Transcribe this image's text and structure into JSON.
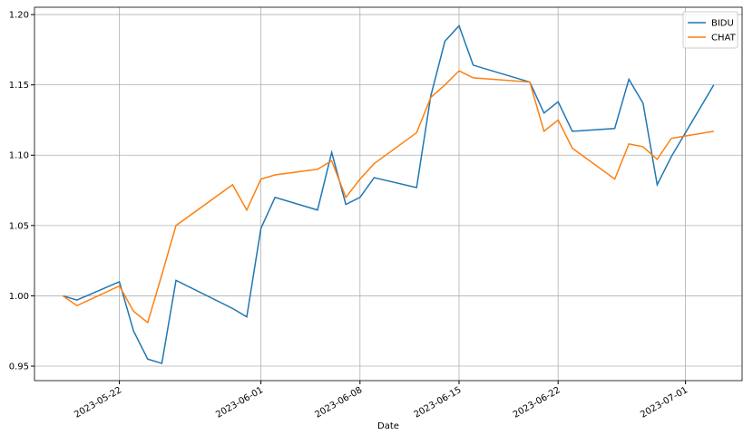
{
  "chart_data": {
    "type": "line",
    "x_label": "Date",
    "x": [
      "2023-05-18",
      "2023-05-19",
      "2023-05-22",
      "2023-05-23",
      "2023-05-24",
      "2023-05-25",
      "2023-05-26",
      "2023-05-30",
      "2023-05-31",
      "2023-06-01",
      "2023-06-02",
      "2023-06-05",
      "2023-06-06",
      "2023-06-07",
      "2023-06-08",
      "2023-06-09",
      "2023-06-12",
      "2023-06-13",
      "2023-06-14",
      "2023-06-15",
      "2023-06-16",
      "2023-06-20",
      "2023-06-21",
      "2023-06-22",
      "2023-06-23",
      "2023-06-26",
      "2023-06-27",
      "2023-06-28",
      "2023-06-29",
      "2023-06-30",
      "2023-07-03"
    ],
    "series": [
      {
        "name": "BIDU",
        "color": "#1f77b4",
        "values": [
          1.0,
          0.997,
          1.01,
          0.975,
          0.955,
          0.952,
          1.011,
          0.991,
          0.985,
          1.048,
          1.07,
          1.061,
          1.102,
          1.065,
          1.07,
          1.084,
          1.077,
          1.142,
          1.181,
          1.192,
          1.164,
          1.152,
          1.13,
          1.138,
          1.117,
          1.119,
          1.154,
          1.137,
          1.079,
          1.099,
          1.15
        ]
      },
      {
        "name": "CHAT",
        "color": "#ff7f0e",
        "values": [
          1.0,
          0.993,
          1.007,
          0.989,
          0.981,
          1.015,
          1.05,
          1.079,
          1.061,
          1.083,
          1.086,
          1.09,
          1.096,
          1.07,
          1.083,
          1.094,
          1.116,
          1.141,
          1.15,
          1.16,
          1.155,
          1.152,
          1.117,
          1.125,
          1.105,
          1.083,
          1.108,
          1.106,
          1.097,
          1.112,
          1.117
        ]
      }
    ],
    "xlim": [
      "2023-05-16",
      "2023-07-05"
    ],
    "xticks": [
      "2023-05-22",
      "2023-06-01",
      "2023-06-08",
      "2023-06-15",
      "2023-06-22",
      "2023-07-01"
    ],
    "ylim": [
      0.9397,
      1.2052
    ],
    "yticks": [
      0.95,
      {
        "value": 1.0,
        "label": "1.00"
      },
      1.05,
      {
        "value": 1.1,
        "label": "1.10"
      },
      1.15,
      {
        "value": 1.2,
        "label": "1.20"
      }
    ],
    "grid": true,
    "legend": "upper right"
  }
}
